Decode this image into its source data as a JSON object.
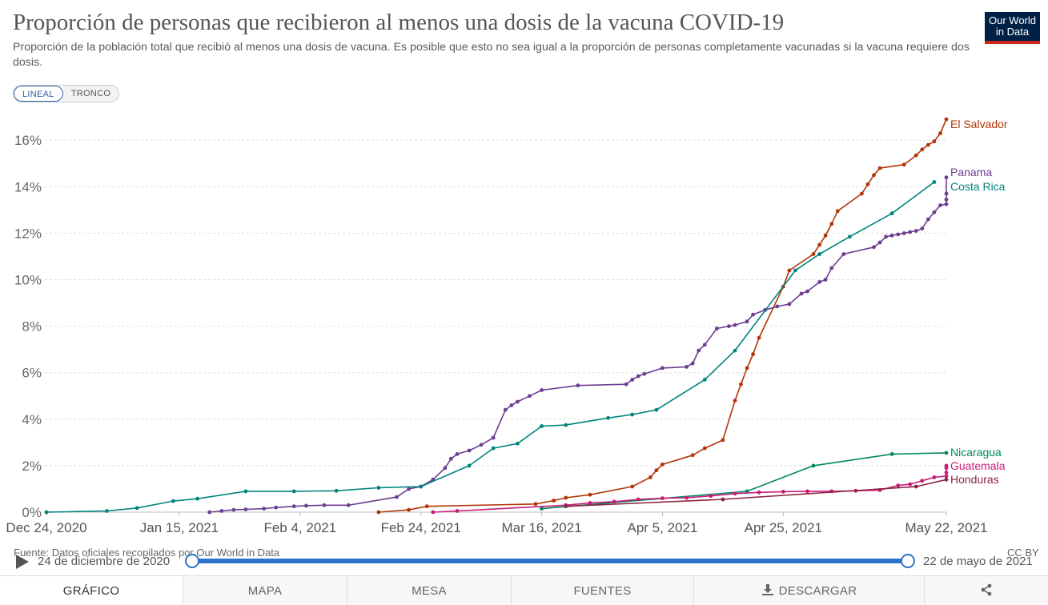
{
  "header": {
    "title": "Proporción de personas que recibieron al menos una dosis de la vacuna COVID-19",
    "subtitle": "Proporción de la población total que recibió al menos una dosis de vacuna. Es posible que esto no sea igual a la proporción de personas completamente vacunadas si la vacuna requiere dos dosis.",
    "logo_line1": "Our World",
    "logo_line2": "in Data"
  },
  "scale_toggle": {
    "linear": "LINEAL",
    "log": "TRONCO",
    "selected": "LINEAL"
  },
  "footer": {
    "source": "Fuente: Datos oficiales recopilados por Our World in Data",
    "license": "CC BY",
    "timeline_start": "24 de diciembre de 2020",
    "timeline_end": "22 de mayo de 2021"
  },
  "tabs": [
    "GRÁFICO",
    "MAPA",
    "MESA",
    "FUENTES",
    "DESCARGAR",
    ""
  ],
  "active_tab": "GRÁFICO",
  "chart_data": {
    "type": "line",
    "title": "Proporción de personas que recibieron al menos una dosis de la vacuna COVID-19",
    "xlabel": "",
    "ylabel": "",
    "x_range": [
      "2020-12-24",
      "2021-05-22"
    ],
    "x_ticks": [
      {
        "date": "2020-12-24",
        "label": "Dec 24, 2020"
      },
      {
        "date": "2021-01-15",
        "label": "Jan 15, 2021"
      },
      {
        "date": "2021-02-04",
        "label": "Feb 4, 2021"
      },
      {
        "date": "2021-02-24",
        "label": "Feb 24, 2021"
      },
      {
        "date": "2021-03-16",
        "label": "Mar 16, 2021"
      },
      {
        "date": "2021-04-05",
        "label": "Apr 5, 2021"
      },
      {
        "date": "2021-04-25",
        "label": "Apr 25, 2021"
      },
      {
        "date": "2021-05-22",
        "label": "May 22, 2021"
      }
    ],
    "ylim": [
      0,
      17
    ],
    "y_ticks": [
      0,
      2,
      4,
      6,
      8,
      10,
      12,
      14,
      16
    ],
    "y_tick_labels": [
      "0%",
      "2%",
      "4%",
      "6%",
      "8%",
      "10%",
      "12%",
      "14%",
      "16%"
    ],
    "grid": "horizontal dashed",
    "legend": "labels at line ends (right)",
    "series": [
      {
        "name": "El Salvador",
        "color": "#b13507",
        "points": [
          [
            "2021-02-17",
            0.0
          ],
          [
            "2021-02-22",
            0.1
          ],
          [
            "2021-02-25",
            0.25
          ],
          [
            "2021-03-15",
            0.35
          ],
          [
            "2021-03-18",
            0.5
          ],
          [
            "2021-03-20",
            0.62
          ],
          [
            "2021-03-24",
            0.75
          ],
          [
            "2021-03-31",
            1.1
          ],
          [
            "2021-04-03",
            1.5
          ],
          [
            "2021-04-04",
            1.8
          ],
          [
            "2021-04-05",
            2.05
          ],
          [
            "2021-04-10",
            2.45
          ],
          [
            "2021-04-12",
            2.75
          ],
          [
            "2021-04-15",
            3.1
          ],
          [
            "2021-04-17",
            4.8
          ],
          [
            "2021-04-18",
            5.5
          ],
          [
            "2021-04-19",
            6.2
          ],
          [
            "2021-04-20",
            6.8
          ],
          [
            "2021-04-21",
            7.5
          ],
          [
            "2021-04-25",
            9.7
          ],
          [
            "2021-04-26",
            10.4
          ],
          [
            "2021-04-30",
            11.1
          ],
          [
            "2021-05-01",
            11.5
          ],
          [
            "2021-05-02",
            11.9
          ],
          [
            "2021-05-03",
            12.4
          ],
          [
            "2021-05-04",
            12.95
          ],
          [
            "2021-05-08",
            13.7
          ],
          [
            "2021-05-09",
            14.1
          ],
          [
            "2021-05-10",
            14.5
          ],
          [
            "2021-05-11",
            14.8
          ],
          [
            "2021-05-15",
            14.95
          ],
          [
            "2021-05-17",
            15.35
          ],
          [
            "2021-05-18",
            15.6
          ],
          [
            "2021-05-19",
            15.8
          ],
          [
            "2021-05-20",
            15.95
          ],
          [
            "2021-05-21",
            16.3
          ],
          [
            "2021-05-22",
            16.9
          ]
        ]
      },
      {
        "name": "Panama",
        "color": "#6d3e91",
        "points": [
          [
            "2021-01-20",
            0.0
          ],
          [
            "2021-01-22",
            0.05
          ],
          [
            "2021-01-24",
            0.1
          ],
          [
            "2021-01-26",
            0.12
          ],
          [
            "2021-01-29",
            0.15
          ],
          [
            "2021-01-31",
            0.2
          ],
          [
            "2021-02-03",
            0.25
          ],
          [
            "2021-02-05",
            0.28
          ],
          [
            "2021-02-08",
            0.3
          ],
          [
            "2021-02-12",
            0.3
          ],
          [
            "2021-02-20",
            0.65
          ],
          [
            "2021-02-22",
            1.0
          ],
          [
            "2021-02-24",
            1.1
          ],
          [
            "2021-02-26",
            1.4
          ],
          [
            "2021-02-28",
            1.9
          ],
          [
            "2021-03-01",
            2.3
          ],
          [
            "2021-03-02",
            2.5
          ],
          [
            "2021-03-04",
            2.65
          ],
          [
            "2021-03-06",
            2.9
          ],
          [
            "2021-03-08",
            3.2
          ],
          [
            "2021-03-10",
            4.4
          ],
          [
            "2021-03-11",
            4.6
          ],
          [
            "2021-03-12",
            4.75
          ],
          [
            "2021-03-14",
            5.0
          ],
          [
            "2021-03-16",
            5.25
          ],
          [
            "2021-03-22",
            5.45
          ],
          [
            "2021-03-30",
            5.5
          ],
          [
            "2021-03-31",
            5.7
          ],
          [
            "2021-04-01",
            5.85
          ],
          [
            "2021-04-02",
            5.95
          ],
          [
            "2021-04-05",
            6.2
          ],
          [
            "2021-04-09",
            6.25
          ],
          [
            "2021-04-10",
            6.4
          ],
          [
            "2021-04-11",
            6.95
          ],
          [
            "2021-04-12",
            7.2
          ],
          [
            "2021-04-14",
            7.9
          ],
          [
            "2021-04-16",
            8.0
          ],
          [
            "2021-04-17",
            8.05
          ],
          [
            "2021-04-19",
            8.2
          ],
          [
            "2021-04-20",
            8.5
          ],
          [
            "2021-04-22",
            8.7
          ],
          [
            "2021-04-24",
            8.85
          ],
          [
            "2021-04-26",
            8.95
          ],
          [
            "2021-04-28",
            9.4
          ],
          [
            "2021-04-29",
            9.5
          ],
          [
            "2021-05-01",
            9.9
          ],
          [
            "2021-05-02",
            10.0
          ],
          [
            "2021-05-03",
            10.5
          ],
          [
            "2021-05-05",
            11.1
          ],
          [
            "2021-05-10",
            11.4
          ],
          [
            "2021-05-11",
            11.6
          ],
          [
            "2021-05-12",
            11.85
          ],
          [
            "2021-05-13",
            11.9
          ],
          [
            "2021-05-14",
            11.95
          ],
          [
            "2021-05-15",
            12.0
          ],
          [
            "2021-05-16",
            12.05
          ],
          [
            "2021-05-17",
            12.1
          ],
          [
            "2021-05-18",
            12.2
          ],
          [
            "2021-05-19",
            12.6
          ],
          [
            "2021-05-20",
            12.9
          ],
          [
            "2021-05-21",
            13.2
          ],
          [
            "2021-05-22",
            13.25
          ],
          [
            "2021-05-23",
            13.45
          ],
          [
            "2021-05-24",
            13.7
          ],
          [
            "2021-05-25",
            14.4
          ]
        ]
      },
      {
        "name": "Costa Rica",
        "color": "#00847e",
        "points": [
          [
            "2020-12-24",
            0.0
          ],
          [
            "2021-01-03",
            0.05
          ],
          [
            "2021-01-08",
            0.18
          ],
          [
            "2021-01-14",
            0.48
          ],
          [
            "2021-01-18",
            0.58
          ],
          [
            "2021-01-26",
            0.9
          ],
          [
            "2021-02-03",
            0.9
          ],
          [
            "2021-02-10",
            0.92
          ],
          [
            "2021-02-17",
            1.05
          ],
          [
            "2021-02-24",
            1.1
          ],
          [
            "2021-03-04",
            2.0
          ],
          [
            "2021-03-08",
            2.75
          ],
          [
            "2021-03-12",
            2.95
          ],
          [
            "2021-03-16",
            3.7
          ],
          [
            "2021-03-20",
            3.75
          ],
          [
            "2021-03-27",
            4.05
          ],
          [
            "2021-03-31",
            4.2
          ],
          [
            "2021-04-04",
            4.4
          ],
          [
            "2021-04-12",
            5.7
          ],
          [
            "2021-04-17",
            6.95
          ],
          [
            "2021-04-27",
            10.4
          ],
          [
            "2021-05-01",
            11.1
          ],
          [
            "2021-05-06",
            11.85
          ],
          [
            "2021-05-13",
            12.85
          ],
          [
            "2021-05-20",
            14.2
          ]
        ]
      },
      {
        "name": "Nicaragua",
        "color": "#00875e",
        "points": [
          [
            "2021-03-16",
            0.15
          ],
          [
            "2021-04-19",
            0.9
          ],
          [
            "2021-04-30",
            2.0
          ],
          [
            "2021-05-13",
            2.5
          ],
          [
            "2021-05-25",
            2.55
          ]
        ]
      },
      {
        "name": "Guatemala",
        "color": "#c71b79",
        "points": [
          [
            "2021-02-26",
            0.0
          ],
          [
            "2021-03-02",
            0.05
          ],
          [
            "2021-03-20",
            0.3
          ],
          [
            "2021-03-24",
            0.4
          ],
          [
            "2021-03-28",
            0.45
          ],
          [
            "2021-04-01",
            0.55
          ],
          [
            "2021-04-05",
            0.6
          ],
          [
            "2021-04-09",
            0.62
          ],
          [
            "2021-04-13",
            0.7
          ],
          [
            "2021-04-17",
            0.8
          ],
          [
            "2021-04-21",
            0.85
          ],
          [
            "2021-04-25",
            0.88
          ],
          [
            "2021-04-29",
            0.9
          ],
          [
            "2021-05-03",
            0.9
          ],
          [
            "2021-05-07",
            0.92
          ],
          [
            "2021-05-11",
            0.95
          ],
          [
            "2021-05-14",
            1.15
          ],
          [
            "2021-05-16",
            1.2
          ],
          [
            "2021-05-18",
            1.35
          ],
          [
            "2021-05-20",
            1.5
          ],
          [
            "2021-05-22",
            1.55
          ],
          [
            "2021-05-23",
            1.7
          ],
          [
            "2021-05-24",
            1.9
          ],
          [
            "2021-05-26",
            2.0
          ]
        ]
      },
      {
        "name": "Honduras",
        "color": "#8c2541",
        "points": [
          [
            "2021-03-20",
            0.25
          ],
          [
            "2021-04-15",
            0.55
          ],
          [
            "2021-05-17",
            1.1
          ],
          [
            "2021-05-24",
            1.4
          ]
        ]
      }
    ],
    "end_labels": [
      {
        "name": "El Salvador",
        "value": 16.9
      },
      {
        "name": "Panama",
        "value": 14.4
      },
      {
        "name": "Costa Rica",
        "value": 14.2
      },
      {
        "name": "Nicaragua",
        "value": 2.55
      },
      {
        "name": "Guatemala",
        "value": 2.0
      },
      {
        "name": "Honduras",
        "value": 1.4
      }
    ]
  }
}
